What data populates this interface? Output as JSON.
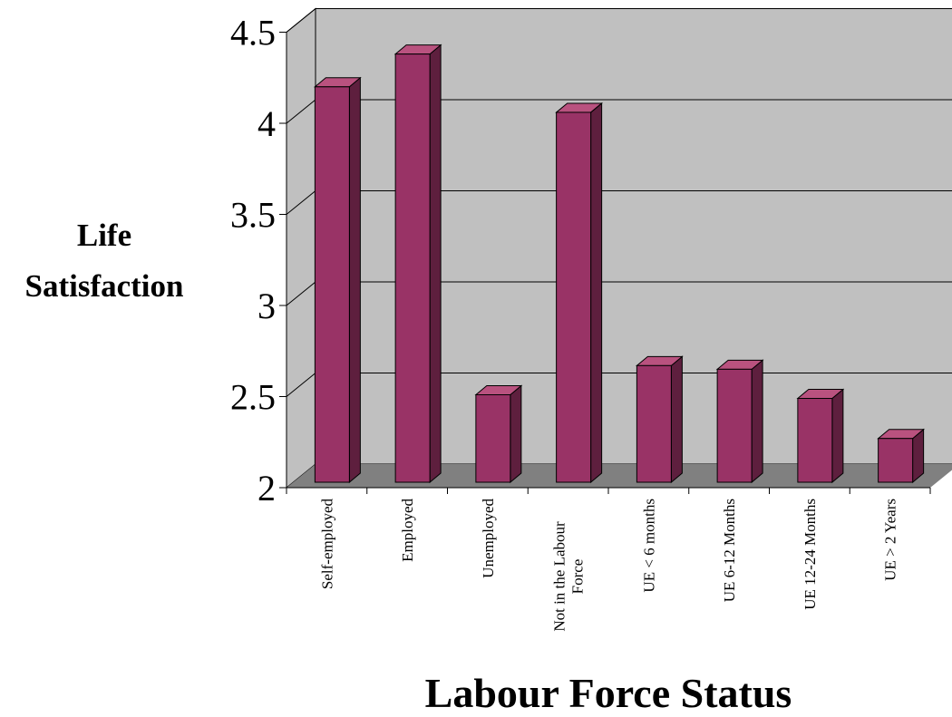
{
  "chart_data": {
    "type": "bar",
    "style": "3d-column",
    "xlabel": "Labour Force Status",
    "ylabel_lines": [
      "Life",
      "Satisfaction"
    ],
    "categories": [
      [
        "Self-employed"
      ],
      [
        "Employed"
      ],
      [
        "Unemployed"
      ],
      [
        "Not in the Labour",
        "Force"
      ],
      [
        "UE < 6 months"
      ],
      [
        "UE 6-12 Months"
      ],
      [
        "UE 12-24 Months"
      ],
      [
        "UE > 2 Years"
      ]
    ],
    "values": [
      4.2,
      4.38,
      2.51,
      4.06,
      2.67,
      2.65,
      2.49,
      2.27
    ],
    "ylim": [
      2,
      4.5
    ],
    "yticks": [
      "2",
      "2.5",
      "3",
      "3.5",
      "4",
      "4.5"
    ],
    "grid": true,
    "colors": {
      "bar_front": "#993366",
      "bar_side": "#5e1f3e",
      "bar_top": "#b9527f",
      "wall": "#c0c0c0",
      "floor": "#808080"
    }
  }
}
